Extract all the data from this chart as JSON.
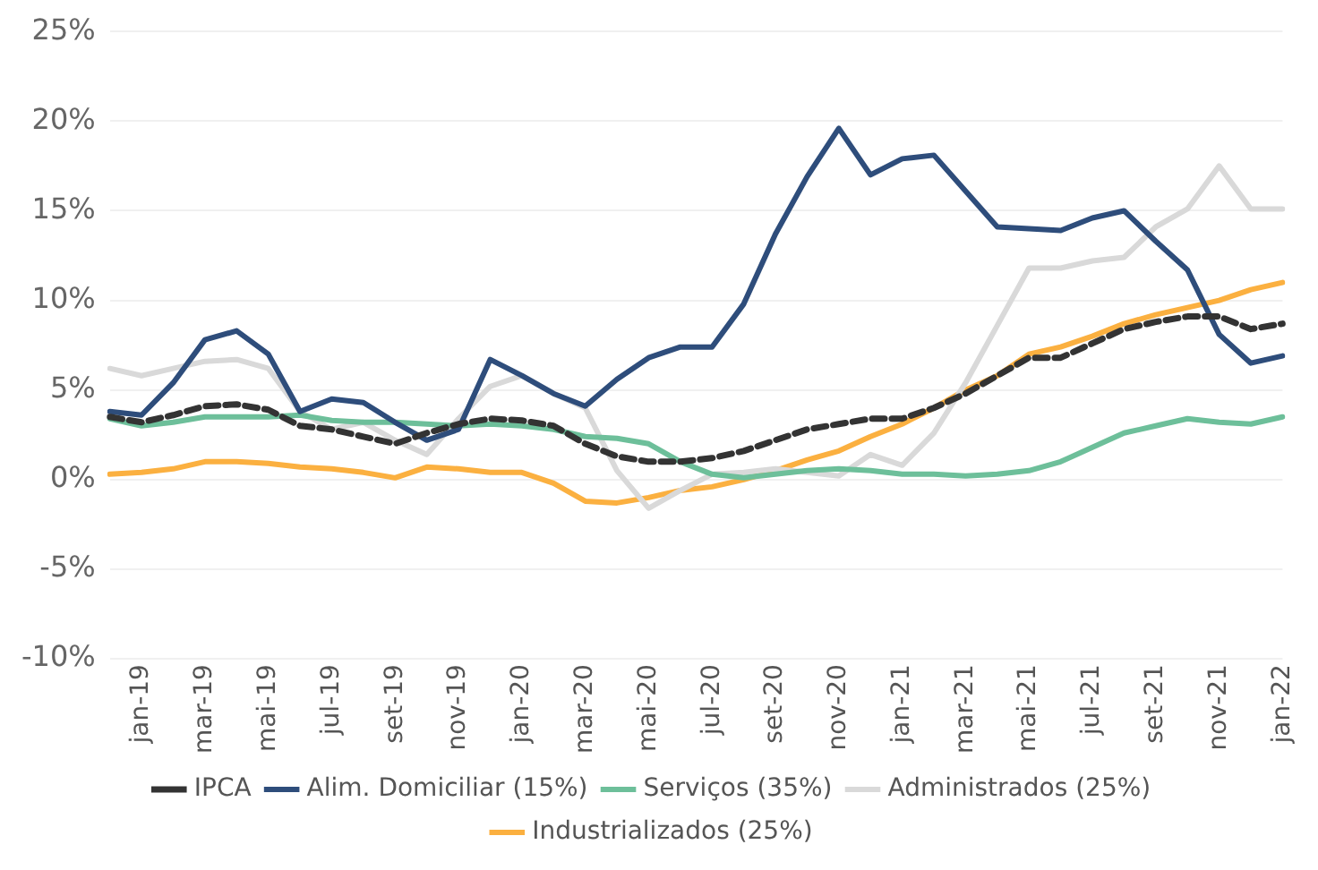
{
  "chart_data": {
    "type": "line",
    "categories": [
      null,
      "jan-19",
      null,
      "mar-19",
      null,
      "mai-19",
      null,
      "jul-19",
      null,
      "set-19",
      null,
      "nov-19",
      null,
      "jan-20",
      null,
      "mar-20",
      null,
      "mai-20",
      null,
      "jul-20",
      null,
      "set-20",
      null,
      "nov-20",
      null,
      "jan-21",
      null,
      "mar-21",
      null,
      "mai-21",
      null,
      "jul-21",
      null,
      "set-21",
      null,
      "nov-21",
      null,
      "jan-22"
    ],
    "series": [
      {
        "name": "IPCA",
        "color": "#333333",
        "line_style": "dashed",
        "values": [
          3.5,
          3.2,
          3.6,
          4.1,
          4.2,
          3.9,
          3.0,
          2.8,
          2.4,
          2.0,
          2.6,
          3.1,
          3.4,
          3.3,
          3.0,
          2.0,
          1.3,
          1.0,
          1.0,
          1.2,
          1.6,
          2.2,
          2.8,
          3.1,
          3.4,
          3.4,
          4.0,
          4.8,
          5.8,
          6.8,
          6.8,
          7.6,
          8.4,
          8.8,
          9.1,
          9.1,
          8.4,
          8.7
        ]
      },
      {
        "name": "Alim. Domiciliar (15%)",
        "color": "#2e4d7b",
        "values": [
          3.8,
          3.6,
          5.4,
          7.8,
          8.3,
          7.0,
          3.8,
          4.5,
          4.3,
          3.2,
          2.2,
          2.8,
          6.7,
          5.8,
          4.8,
          4.1,
          5.6,
          6.8,
          7.4,
          7.4,
          9.8,
          13.7,
          16.9,
          19.6,
          17.0,
          17.9,
          18.1,
          16.1,
          14.1,
          14.0,
          13.9,
          14.6,
          15.0,
          13.3,
          11.7,
          8.1,
          6.5,
          6.9
        ]
      },
      {
        "name": "Serviços (35%)",
        "color": "#6dbf9a",
        "values": [
          3.4,
          3.0,
          3.2,
          3.5,
          3.5,
          3.5,
          3.6,
          3.3,
          3.2,
          3.2,
          3.1,
          3.0,
          3.1,
          3.0,
          2.8,
          2.4,
          2.3,
          2.0,
          1.0,
          0.3,
          0.1,
          0.3,
          0.5,
          0.6,
          0.5,
          0.3,
          0.3,
          0.2,
          0.3,
          0.5,
          1.0,
          1.8,
          2.6,
          3.0,
          3.4,
          3.2,
          3.1,
          3.5
        ]
      },
      {
        "name": "Administrados (25%)",
        "color": "#d9d9d9",
        "values": [
          6.2,
          5.8,
          6.2,
          6.6,
          6.7,
          6.2,
          3.8,
          2.8,
          3.2,
          2.2,
          1.4,
          3.4,
          5.2,
          5.8,
          4.8,
          4.0,
          0.5,
          -1.6,
          -0.6,
          0.3,
          0.4,
          0.6,
          0.4,
          0.2,
          1.4,
          0.8,
          2.6,
          5.4,
          8.6,
          11.8,
          11.8,
          12.2,
          12.4,
          14.1,
          15.1,
          17.5,
          15.1,
          15.1
        ]
      },
      {
        "name": "Industrializados (25%)",
        "color": "#fbb040",
        "values": [
          0.3,
          0.4,
          0.6,
          1.0,
          1.0,
          0.9,
          0.7,
          0.6,
          0.4,
          0.1,
          0.7,
          0.6,
          0.4,
          0.4,
          -0.2,
          -1.2,
          -1.3,
          -1.0,
          -0.6,
          -0.4,
          0.0,
          0.5,
          1.1,
          1.6,
          2.4,
          3.1,
          4.0,
          5.0,
          5.8,
          7.0,
          7.4,
          8.0,
          8.7,
          9.2,
          9.6,
          10.0,
          10.6,
          11.0
        ]
      }
    ],
    "ylim": [
      -10,
      25
    ],
    "yticks": [
      {
        "value": -10,
        "label": "-10%"
      },
      {
        "value": -5,
        "label": "-5%"
      },
      {
        "value": 0,
        "label": "0%"
      },
      {
        "value": 5,
        "label": "5%"
      },
      {
        "value": 10,
        "label": "10%"
      },
      {
        "value": 15,
        "label": "15%"
      },
      {
        "value": 20,
        "label": "20%"
      },
      {
        "value": 25,
        "label": "25%"
      }
    ],
    "grid": "y",
    "legend": "bottom",
    "marker": "none",
    "line_style": "solid"
  }
}
